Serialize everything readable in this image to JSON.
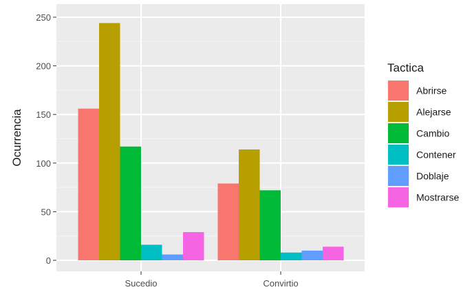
{
  "chart_data": {
    "type": "bar",
    "ylabel": "Ocurrencia",
    "xlabel": "",
    "categories": [
      "Sucedio",
      "Convirtio"
    ],
    "ylim": [
      0,
      260
    ],
    "yticks": [
      0,
      50,
      100,
      150,
      200,
      250
    ],
    "grid": true,
    "legend": {
      "title": "Tactica",
      "placement": "right"
    },
    "series": [
      {
        "name": "Abrirse",
        "color": "#F8766D",
        "values": [
          156,
          79
        ]
      },
      {
        "name": "Alejarse",
        "color": "#B79F00",
        "values": [
          244,
          114
        ]
      },
      {
        "name": "Cambio",
        "color": "#00BA38",
        "values": [
          117,
          72
        ]
      },
      {
        "name": "Contener",
        "color": "#00BFC4",
        "values": [
          16,
          8
        ]
      },
      {
        "name": "Doblaje",
        "color": "#619CFF",
        "values": [
          6,
          10
        ]
      },
      {
        "name": "Mostrarse",
        "color": "#F564E3",
        "values": [
          29,
          14
        ]
      }
    ]
  }
}
